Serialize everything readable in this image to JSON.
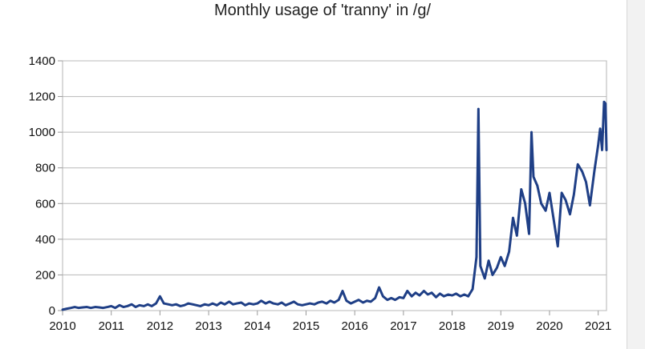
{
  "chart_data": {
    "type": "line",
    "title": "Monthly usage of 'tranny' in /g/",
    "xlabel": "",
    "ylabel": "",
    "xlim": [
      2010,
      2021.17
    ],
    "ylim": [
      0,
      1400
    ],
    "grid": "horizontal",
    "x_ticks": [
      "2010",
      "2011",
      "2012",
      "2013",
      "2014",
      "2015",
      "2016",
      "2017",
      "2018",
      "2019",
      "2020",
      "2021"
    ],
    "y_ticks": [
      "0",
      "200",
      "400",
      "600",
      "800",
      "1000",
      "1200",
      "1400"
    ],
    "color": "#1f3f86",
    "series": [
      {
        "name": "",
        "points": [
          [
            2010.0,
            5
          ],
          [
            2010.08,
            10
          ],
          [
            2010.17,
            15
          ],
          [
            2010.25,
            20
          ],
          [
            2010.33,
            15
          ],
          [
            2010.42,
            18
          ],
          [
            2010.5,
            20
          ],
          [
            2010.58,
            15
          ],
          [
            2010.67,
            20
          ],
          [
            2010.75,
            18
          ],
          [
            2010.83,
            15
          ],
          [
            2010.92,
            20
          ],
          [
            2011.0,
            25
          ],
          [
            2011.08,
            15
          ],
          [
            2011.17,
            30
          ],
          [
            2011.25,
            20
          ],
          [
            2011.33,
            25
          ],
          [
            2011.42,
            35
          ],
          [
            2011.5,
            20
          ],
          [
            2011.58,
            30
          ],
          [
            2011.67,
            25
          ],
          [
            2011.75,
            35
          ],
          [
            2011.83,
            25
          ],
          [
            2011.92,
            40
          ],
          [
            2012.0,
            80
          ],
          [
            2012.08,
            40
          ],
          [
            2012.17,
            35
          ],
          [
            2012.25,
            30
          ],
          [
            2012.33,
            35
          ],
          [
            2012.42,
            25
          ],
          [
            2012.5,
            30
          ],
          [
            2012.58,
            40
          ],
          [
            2012.67,
            35
          ],
          [
            2012.75,
            30
          ],
          [
            2012.83,
            25
          ],
          [
            2012.92,
            35
          ],
          [
            2013.0,
            30
          ],
          [
            2013.08,
            40
          ],
          [
            2013.17,
            30
          ],
          [
            2013.25,
            45
          ],
          [
            2013.33,
            35
          ],
          [
            2013.42,
            50
          ],
          [
            2013.5,
            35
          ],
          [
            2013.58,
            40
          ],
          [
            2013.67,
            45
          ],
          [
            2013.75,
            30
          ],
          [
            2013.83,
            40
          ],
          [
            2013.92,
            35
          ],
          [
            2014.0,
            40
          ],
          [
            2014.08,
            55
          ],
          [
            2014.17,
            40
          ],
          [
            2014.25,
            50
          ],
          [
            2014.33,
            40
          ],
          [
            2014.42,
            35
          ],
          [
            2014.5,
            45
          ],
          [
            2014.58,
            30
          ],
          [
            2014.67,
            40
          ],
          [
            2014.75,
            50
          ],
          [
            2014.83,
            35
          ],
          [
            2014.92,
            30
          ],
          [
            2015.0,
            35
          ],
          [
            2015.08,
            40
          ],
          [
            2015.17,
            35
          ],
          [
            2015.25,
            45
          ],
          [
            2015.33,
            50
          ],
          [
            2015.42,
            40
          ],
          [
            2015.5,
            55
          ],
          [
            2015.58,
            45
          ],
          [
            2015.67,
            60
          ],
          [
            2015.75,
            110
          ],
          [
            2015.83,
            55
          ],
          [
            2015.92,
            40
          ],
          [
            2016.0,
            50
          ],
          [
            2016.08,
            60
          ],
          [
            2016.17,
            45
          ],
          [
            2016.25,
            55
          ],
          [
            2016.33,
            50
          ],
          [
            2016.42,
            70
          ],
          [
            2016.5,
            130
          ],
          [
            2016.58,
            80
          ],
          [
            2016.67,
            60
          ],
          [
            2016.75,
            70
          ],
          [
            2016.83,
            60
          ],
          [
            2016.92,
            75
          ],
          [
            2017.0,
            70
          ],
          [
            2017.08,
            110
          ],
          [
            2017.17,
            80
          ],
          [
            2017.25,
            100
          ],
          [
            2017.33,
            85
          ],
          [
            2017.42,
            110
          ],
          [
            2017.5,
            90
          ],
          [
            2017.58,
            100
          ],
          [
            2017.67,
            75
          ],
          [
            2017.75,
            95
          ],
          [
            2017.83,
            80
          ],
          [
            2017.92,
            90
          ],
          [
            2018.0,
            85
          ],
          [
            2018.08,
            95
          ],
          [
            2018.17,
            80
          ],
          [
            2018.25,
            90
          ],
          [
            2018.33,
            80
          ],
          [
            2018.42,
            120
          ],
          [
            2018.5,
            300
          ],
          [
            2018.54,
            1130
          ],
          [
            2018.58,
            250
          ],
          [
            2018.67,
            180
          ],
          [
            2018.75,
            280
          ],
          [
            2018.83,
            200
          ],
          [
            2018.92,
            240
          ],
          [
            2019.0,
            300
          ],
          [
            2019.08,
            250
          ],
          [
            2019.17,
            330
          ],
          [
            2019.25,
            520
          ],
          [
            2019.33,
            420
          ],
          [
            2019.42,
            680
          ],
          [
            2019.5,
            600
          ],
          [
            2019.58,
            430
          ],
          [
            2019.63,
            1000
          ],
          [
            2019.67,
            750
          ],
          [
            2019.75,
            700
          ],
          [
            2019.83,
            600
          ],
          [
            2019.92,
            560
          ],
          [
            2020.0,
            660
          ],
          [
            2020.08,
            520
          ],
          [
            2020.17,
            360
          ],
          [
            2020.25,
            660
          ],
          [
            2020.33,
            620
          ],
          [
            2020.42,
            540
          ],
          [
            2020.5,
            650
          ],
          [
            2020.58,
            820
          ],
          [
            2020.67,
            780
          ],
          [
            2020.75,
            720
          ],
          [
            2020.83,
            590
          ],
          [
            2020.92,
            780
          ],
          [
            2021.0,
            930
          ],
          [
            2021.04,
            1020
          ],
          [
            2021.08,
            900
          ],
          [
            2021.12,
            1170
          ],
          [
            2021.15,
            1160
          ],
          [
            2021.17,
            900
          ]
        ]
      }
    ]
  }
}
